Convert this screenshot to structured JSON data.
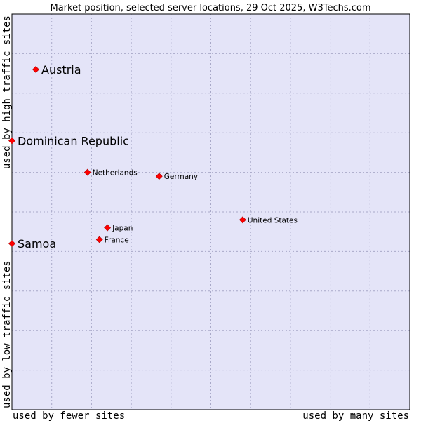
{
  "chart_data": {
    "type": "scatter",
    "title": "Market position, selected server locations, 29 Oct 2025, W3Techs.com",
    "xlabel_left": "used by fewer sites",
    "xlabel_right": "used by many sites",
    "ylabel_bottom": "used by low traffic sites",
    "ylabel_top": "used by high traffic sites",
    "xlim": [
      0,
      100
    ],
    "ylim": [
      0,
      100
    ],
    "grid": true,
    "points": [
      {
        "name": "Austria",
        "x": 6,
        "y": 86,
        "highlight": true
      },
      {
        "name": "Dominican Republic",
        "x": 0,
        "y": 68,
        "highlight": true
      },
      {
        "name": "Netherlands",
        "x": 19,
        "y": 60,
        "highlight": false
      },
      {
        "name": "Germany",
        "x": 37,
        "y": 59,
        "highlight": false
      },
      {
        "name": "United States",
        "x": 58,
        "y": 48,
        "highlight": false
      },
      {
        "name": "Japan",
        "x": 24,
        "y": 46,
        "highlight": false
      },
      {
        "name": "France",
        "x": 22,
        "y": 43,
        "highlight": false
      },
      {
        "name": "Samoa",
        "x": 0,
        "y": 42,
        "highlight": true
      }
    ],
    "colors": {
      "plot_background": "#e4e4f8",
      "grid": "#a8a8c8",
      "point": "#ff0000",
      "border": "#000000"
    }
  }
}
